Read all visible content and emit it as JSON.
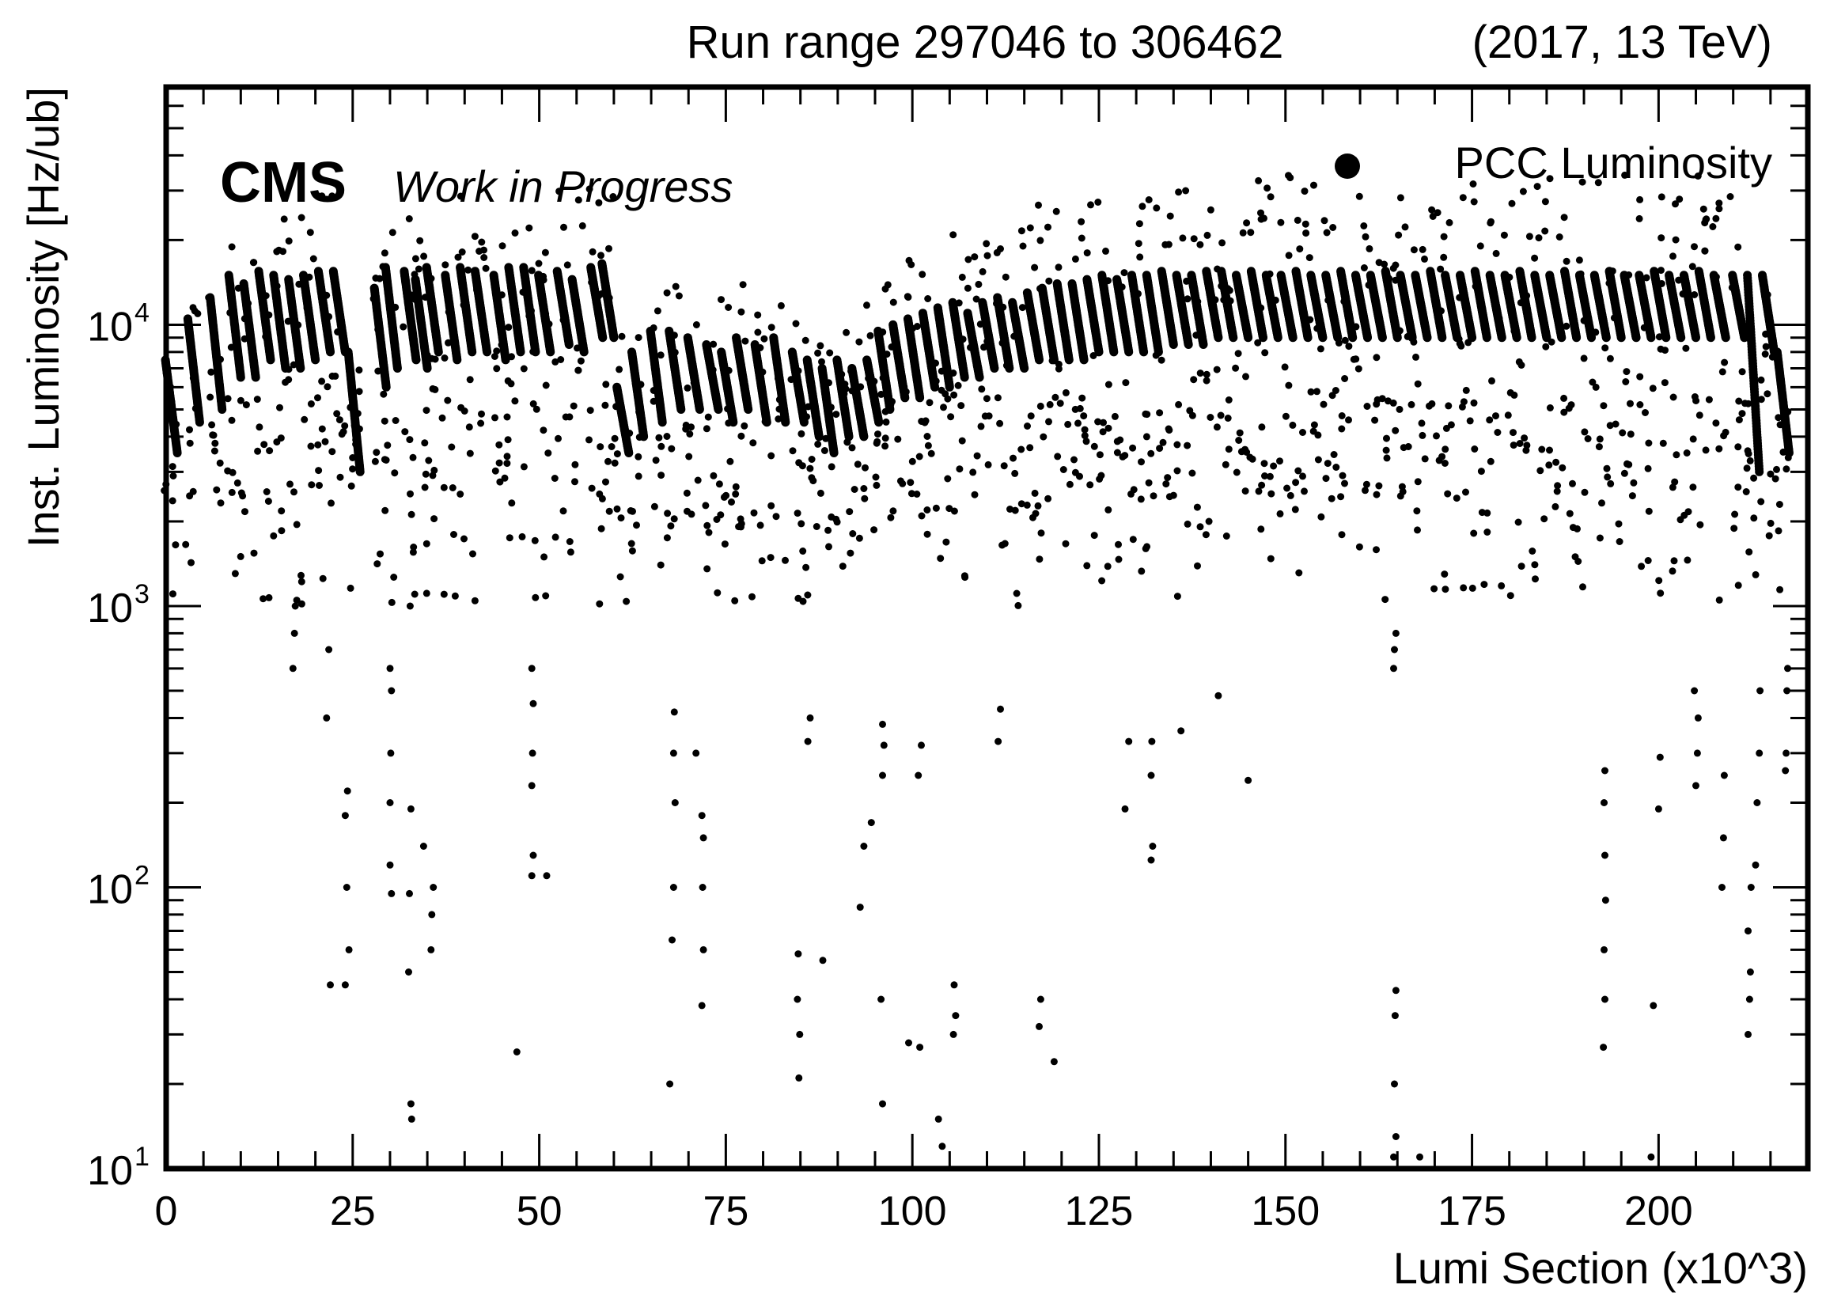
{
  "chart_data": {
    "type": "scatter",
    "title": "Run range 297046 to 306462",
    "subtitle": "(2017, 13 TeV)",
    "label_main": "CMS",
    "label_sub": "Work in Progress",
    "xlabel": "Lumi Section (x10^3)",
    "ylabel": "Inst. Luminosity [Hz/ub]",
    "xlim": [
      0,
      220
    ],
    "ylim": [
      10,
      70000
    ],
    "yscale": "log",
    "x_ticks": [
      0,
      25,
      50,
      75,
      100,
      125,
      150,
      175,
      200
    ],
    "x_tick_labels": [
      "0",
      "25",
      "50",
      "75",
      "100",
      "125",
      "150",
      "175",
      "200"
    ],
    "y_tick_labels": [
      {
        "base": "10",
        "exp": "1",
        "value": 10
      },
      {
        "base": "10",
        "exp": "2",
        "value": 100
      },
      {
        "base": "10",
        "exp": "3",
        "value": 1000
      },
      {
        "base": "10",
        "exp": "4",
        "value": 10000
      }
    ],
    "legend": {
      "position": "top-right",
      "entries": [
        "PCC Luminosity"
      ]
    },
    "marker_color": "#000000",
    "grid": false,
    "series": [
      {
        "name": "PCC Luminosity",
        "fills": [
          [
            0.5,
            7500,
            3500
          ],
          [
            3.5,
            10500,
            4500
          ],
          [
            6.5,
            12500,
            5000
          ],
          [
            9.0,
            15000,
            6500
          ],
          [
            11.0,
            14000,
            6500
          ],
          [
            13.0,
            15500,
            7500
          ],
          [
            15.0,
            15000,
            7000
          ],
          [
            17.0,
            14500,
            7000
          ],
          [
            19.0,
            15000,
            7500
          ],
          [
            21.0,
            15500,
            8000
          ],
          [
            23.0,
            15500,
            8000
          ],
          [
            25.0,
            8000,
            3000
          ],
          [
            28.5,
            13500,
            6000
          ],
          [
            30.0,
            16000,
            7000
          ],
          [
            32.5,
            15500,
            7500
          ],
          [
            34.0,
            14500,
            7000
          ],
          [
            35.5,
            16000,
            8000
          ],
          [
            38.0,
            15000,
            7500
          ],
          [
            40.0,
            16000,
            8000
          ],
          [
            42.0,
            15500,
            8000
          ],
          [
            44.5,
            15000,
            7500
          ],
          [
            46.5,
            16000,
            8000
          ],
          [
            48.5,
            16000,
            8000
          ],
          [
            50.5,
            15000,
            8000
          ],
          [
            53.0,
            15500,
            8500
          ],
          [
            55.0,
            14500,
            8000
          ],
          [
            57.5,
            16000,
            9000
          ],
          [
            59.0,
            16500,
            9000
          ],
          [
            61.0,
            6000,
            3500
          ],
          [
            63.0,
            8000,
            4000
          ],
          [
            65.5,
            9500,
            4500
          ],
          [
            68.0,
            9500,
            5000
          ],
          [
            70.5,
            9000,
            5000
          ],
          [
            73.0,
            8500,
            5000
          ],
          [
            75.0,
            8000,
            4500
          ],
          [
            77.0,
            9000,
            5000
          ],
          [
            79.5,
            8500,
            4500
          ],
          [
            82.0,
            9000,
            4500
          ],
          [
            84.5,
            8000,
            4500
          ],
          [
            86.5,
            7500,
            4000
          ],
          [
            88.5,
            7000,
            3500
          ],
          [
            90.5,
            7500,
            4000
          ],
          [
            92.5,
            7000,
            4000
          ],
          [
            94.5,
            7500,
            4500
          ],
          [
            96.0,
            9500,
            5000
          ],
          [
            98.0,
            10000,
            5500
          ],
          [
            100.0,
            10500,
            5500
          ],
          [
            102.0,
            11000,
            6000
          ],
          [
            104.0,
            11500,
            6000
          ],
          [
            106.0,
            12000,
            6500
          ],
          [
            108.0,
            11000,
            6500
          ],
          [
            110.0,
            12000,
            7000
          ],
          [
            112.0,
            12500,
            7000
          ],
          [
            114.0,
            12000,
            7000
          ],
          [
            116.0,
            13000,
            7500
          ],
          [
            118.0,
            13500,
            7500
          ],
          [
            120.0,
            14000,
            7500
          ],
          [
            122.0,
            14000,
            7500
          ],
          [
            124.0,
            14500,
            8000
          ],
          [
            126.0,
            15000,
            8000
          ],
          [
            128.0,
            14500,
            8000
          ],
          [
            130.0,
            15000,
            8000
          ],
          [
            132.0,
            15000,
            8000
          ],
          [
            134.0,
            15500,
            8500
          ],
          [
            136.0,
            15000,
            8500
          ],
          [
            138.0,
            15000,
            8500
          ],
          [
            140.0,
            15500,
            9000
          ],
          [
            142.0,
            15500,
            9000
          ],
          [
            144.0,
            15000,
            9000
          ],
          [
            146.0,
            15500,
            9000
          ],
          [
            148.0,
            15000,
            9000
          ],
          [
            150.0,
            15000,
            9000
          ],
          [
            152.0,
            15500,
            9000
          ],
          [
            154.0,
            15000,
            9000
          ],
          [
            156.0,
            15000,
            9000
          ],
          [
            158.0,
            15500,
            9000
          ],
          [
            160.0,
            15000,
            9000
          ],
          [
            162.0,
            15000,
            9000
          ],
          [
            164.0,
            15500,
            9000
          ],
          [
            166.0,
            15000,
            9000
          ],
          [
            168.0,
            15000,
            9000
          ],
          [
            170.0,
            15500,
            9000
          ],
          [
            172.0,
            15000,
            9000
          ],
          [
            174.0,
            15000,
            9000
          ],
          [
            176.0,
            15500,
            9000
          ],
          [
            178.0,
            15000,
            9000
          ],
          [
            180.0,
            15000,
            9000
          ],
          [
            182.0,
            15500,
            9000
          ],
          [
            184.0,
            15000,
            9000
          ],
          [
            186.0,
            15000,
            9000
          ],
          [
            188.0,
            15500,
            9000
          ],
          [
            190.0,
            15000,
            9000
          ],
          [
            192.0,
            15000,
            9000
          ],
          [
            194.0,
            15500,
            9000
          ],
          [
            196.0,
            15000,
            9000
          ],
          [
            198.0,
            15000,
            9000
          ],
          [
            200.0,
            15500,
            9000
          ],
          [
            202.0,
            15000,
            9000
          ],
          [
            204.0,
            15000,
            9000
          ],
          [
            206.0,
            15500,
            9000
          ],
          [
            208.0,
            15000,
            9000
          ],
          [
            210.5,
            15000,
            9000
          ],
          [
            212.5,
            15000,
            3000
          ],
          [
            214.5,
            15000,
            8000
          ],
          [
            216.5,
            8000,
            3500
          ]
        ],
        "tails": [
          [
            24.0,
            45
          ],
          [
            24.5,
            60
          ],
          [
            24.2,
            100
          ],
          [
            24.0,
            180
          ],
          [
            24.3,
            220
          ],
          [
            22.0,
            45
          ],
          [
            21.5,
            400
          ],
          [
            21.8,
            700
          ],
          [
            17.0,
            600
          ],
          [
            17.2,
            800
          ],
          [
            17.3,
            1000
          ],
          [
            30.0,
            120
          ],
          [
            30.2,
            95
          ],
          [
            30.0,
            200
          ],
          [
            30.1,
            300
          ],
          [
            30.2,
            500
          ],
          [
            30.0,
            600
          ],
          [
            32.8,
            17
          ],
          [
            32.9,
            15
          ],
          [
            32.5,
            50
          ],
          [
            32.6,
            95
          ],
          [
            32.8,
            190
          ],
          [
            32.7,
            1000
          ],
          [
            34.5,
            140
          ],
          [
            35.5,
            60
          ],
          [
            35.6,
            80
          ],
          [
            35.8,
            100
          ],
          [
            49.0,
            110
          ],
          [
            49.2,
            130
          ],
          [
            49.0,
            230
          ],
          [
            49.1,
            300
          ],
          [
            49.2,
            450
          ],
          [
            49.0,
            600
          ],
          [
            47.0,
            26
          ],
          [
            51.0,
            110
          ],
          [
            67.5,
            20
          ],
          [
            67.8,
            65
          ],
          [
            68.0,
            100
          ],
          [
            68.2,
            200
          ],
          [
            68.0,
            300
          ],
          [
            68.1,
            420
          ],
          [
            71.8,
            38
          ],
          [
            72.0,
            60
          ],
          [
            71.9,
            100
          ],
          [
            72.0,
            150
          ],
          [
            71.8,
            180
          ],
          [
            71.0,
            300
          ],
          [
            84.8,
            21
          ],
          [
            84.9,
            30
          ],
          [
            84.6,
            40
          ],
          [
            84.7,
            58
          ],
          [
            86.0,
            330
          ],
          [
            86.3,
            400
          ],
          [
            88.0,
            55
          ],
          [
            93.0,
            85
          ],
          [
            93.5,
            140
          ],
          [
            94.5,
            170
          ],
          [
            96.0,
            17
          ],
          [
            95.8,
            40
          ],
          [
            96.0,
            250
          ],
          [
            96.2,
            320
          ],
          [
            96.0,
            380
          ],
          [
            99.5,
            28
          ],
          [
            101.0,
            27
          ],
          [
            100.8,
            250
          ],
          [
            101.2,
            320
          ],
          [
            103.5,
            15
          ],
          [
            104.0,
            12
          ],
          [
            105.5,
            30
          ],
          [
            105.6,
            45
          ],
          [
            105.8,
            35
          ],
          [
            111.5,
            330
          ],
          [
            111.8,
            430
          ],
          [
            117.0,
            32
          ],
          [
            117.2,
            40
          ],
          [
            119.0,
            24
          ],
          [
            128.5,
            190
          ],
          [
            129.0,
            330
          ],
          [
            132.0,
            125
          ],
          [
            132.2,
            140
          ],
          [
            132.0,
            250
          ],
          [
            132.1,
            330
          ],
          [
            136.0,
            360
          ],
          [
            141.0,
            480
          ],
          [
            145.0,
            240
          ],
          [
            164.5,
            11
          ],
          [
            164.8,
            13
          ],
          [
            164.6,
            20
          ],
          [
            164.7,
            35
          ],
          [
            164.8,
            43
          ],
          [
            164.5,
            600
          ],
          [
            164.6,
            700
          ],
          [
            164.8,
            800
          ],
          [
            168.0,
            11
          ],
          [
            192.6,
            27
          ],
          [
            192.8,
            40
          ],
          [
            192.7,
            60
          ],
          [
            192.9,
            90
          ],
          [
            192.8,
            130
          ],
          [
            192.7,
            200
          ],
          [
            192.8,
            260
          ],
          [
            199.0,
            11
          ],
          [
            199.3,
            38
          ],
          [
            200.0,
            190
          ],
          [
            200.2,
            290
          ],
          [
            205.0,
            230
          ],
          [
            205.2,
            300
          ],
          [
            205.3,
            400
          ],
          [
            204.8,
            500
          ],
          [
            208.5,
            100
          ],
          [
            208.7,
            150
          ],
          [
            208.8,
            250
          ],
          [
            212.0,
            30
          ],
          [
            212.2,
            40
          ],
          [
            212.3,
            50
          ],
          [
            212.0,
            70
          ],
          [
            212.4,
            100
          ],
          [
            213.0,
            120
          ],
          [
            213.2,
            200
          ],
          [
            213.5,
            300
          ],
          [
            213.6,
            500
          ],
          [
            217.0,
            260
          ],
          [
            217.1,
            300
          ],
          [
            217.2,
            500
          ],
          [
            217.3,
            600
          ]
        ]
      }
    ]
  }
}
